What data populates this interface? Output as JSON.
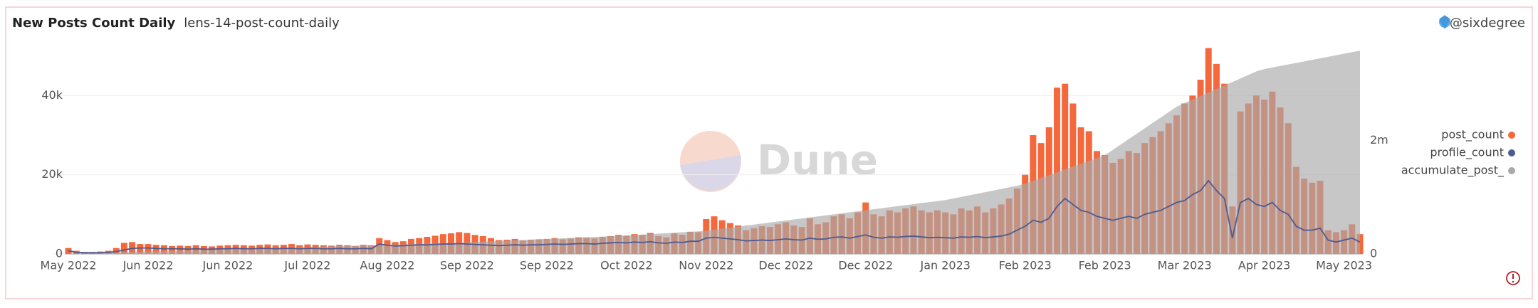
{
  "chart_data": {
    "type": "bar",
    "title": "New Posts Count Daily",
    "subtitle": "lens-14-post-count-daily",
    "author": "@sixdegree",
    "watermark": "Dune",
    "categories": [
      "May 2022",
      null,
      null,
      null,
      null,
      null,
      null,
      null,
      null,
      null,
      "Jun 2022",
      null,
      null,
      null,
      null,
      null,
      null,
      null,
      null,
      null,
      "Jun 2022",
      null,
      null,
      null,
      null,
      null,
      null,
      null,
      null,
      null,
      "Jul 2022",
      null,
      null,
      null,
      null,
      null,
      null,
      null,
      null,
      null,
      "Aug 2022",
      null,
      null,
      null,
      null,
      null,
      null,
      null,
      null,
      null,
      "Sep 2022",
      null,
      null,
      null,
      null,
      null,
      null,
      null,
      null,
      null,
      "Sep 2022",
      null,
      null,
      null,
      null,
      null,
      null,
      null,
      null,
      null,
      "Oct 2022",
      null,
      null,
      null,
      null,
      null,
      null,
      null,
      null,
      null,
      "Nov 2022",
      null,
      null,
      null,
      null,
      null,
      null,
      null,
      null,
      null,
      "Dec 2022",
      null,
      null,
      null,
      null,
      null,
      null,
      null,
      null,
      null,
      "Dec 2022",
      null,
      null,
      null,
      null,
      null,
      null,
      null,
      null,
      null,
      "Jan 2023",
      null,
      null,
      null,
      null,
      null,
      null,
      null,
      null,
      null,
      "Feb 2023",
      null,
      null,
      null,
      null,
      null,
      null,
      null,
      null,
      null,
      "Feb 2023",
      null,
      null,
      null,
      null,
      null,
      null,
      null,
      null,
      null,
      "Mar 2023",
      null,
      null,
      null,
      null,
      null,
      null,
      null,
      null,
      null,
      "Apr 2023",
      null,
      null,
      null,
      null,
      null,
      null,
      null,
      null,
      null,
      "May 2023",
      null,
      null
    ],
    "series": [
      {
        "name": "post_count",
        "color": "#f4683c",
        "type": "bar",
        "values": [
          1500,
          800,
          500,
          500,
          600,
          800,
          1500,
          2800,
          3000,
          2500,
          2500,
          2300,
          2200,
          2000,
          2100,
          2000,
          2200,
          2000,
          1900,
          2100,
          2200,
          2300,
          2200,
          2100,
          2300,
          2400,
          2200,
          2300,
          2500,
          2200,
          2400,
          2300,
          2200,
          2100,
          2300,
          2200,
          2000,
          2300,
          2200,
          4000,
          3500,
          3000,
          3200,
          3800,
          4000,
          4300,
          4600,
          5000,
          5200,
          5500,
          5300,
          4800,
          4500,
          4000,
          3500,
          3600,
          3800,
          3400,
          3600,
          3700,
          3800,
          4000,
          3700,
          3900,
          4200,
          4100,
          3900,
          4300,
          4500,
          4800,
          4600,
          5000,
          4800,
          5300,
          4500,
          4200,
          5200,
          4800,
          5600,
          5500,
          8800,
          9500,
          8500,
          7800,
          7200,
          6000,
          6500,
          7000,
          6800,
          7500,
          8000,
          7200,
          6800,
          9000,
          7500,
          8000,
          9500,
          10000,
          9000,
          10500,
          13000,
          10000,
          9500,
          11000,
          10500,
          11500,
          12000,
          11000,
          10500,
          11000,
          10500,
          10000,
          11500,
          11000,
          12000,
          10500,
          11500,
          12500,
          14000,
          16500,
          20000,
          30000,
          28000,
          32000,
          42000,
          43000,
          38000,
          32000,
          31000,
          26000,
          25000,
          23000,
          24000,
          26000,
          25500,
          28000,
          29500,
          31000,
          33000,
          35000,
          38000,
          40000,
          44000,
          52000,
          48000,
          43000,
          12000,
          36000,
          38000,
          40000,
          39000,
          41000,
          37000,
          33000,
          22000,
          19000,
          18000,
          18500,
          6000,
          5500,
          6000,
          7500,
          5000
        ]
      },
      {
        "name": "profile_count",
        "color": "#4e5a92",
        "type": "line",
        "values": [
          800,
          400,
          300,
          300,
          300,
          400,
          600,
          1000,
          1400,
          1500,
          1500,
          1400,
          1300,
          1300,
          1300,
          1200,
          1300,
          1200,
          1200,
          1300,
          1300,
          1400,
          1300,
          1300,
          1400,
          1400,
          1300,
          1400,
          1400,
          1300,
          1400,
          1400,
          1300,
          1300,
          1400,
          1300,
          1300,
          1400,
          1300,
          2500,
          2200,
          2000,
          2100,
          2200,
          2300,
          2300,
          2400,
          2500,
          2500,
          2600,
          2500,
          2400,
          2300,
          2200,
          2100,
          2200,
          2300,
          2200,
          2300,
          2300,
          2400,
          2500,
          2400,
          2500,
          2600,
          2600,
          2500,
          2700,
          2800,
          2900,
          2800,
          3000,
          2900,
          3100,
          2800,
          2700,
          3000,
          2900,
          3200,
          3200,
          4000,
          4200,
          4000,
          3800,
          3600,
          3300,
          3400,
          3500,
          3400,
          3600,
          3800,
          3600,
          3500,
          4000,
          3700,
          3800,
          4200,
          4300,
          4000,
          4400,
          4800,
          4200,
          4000,
          4300,
          4200,
          4400,
          4500,
          4300,
          4100,
          4200,
          4100,
          4000,
          4300,
          4200,
          4400,
          4100,
          4300,
          4500,
          5000,
          6000,
          7000,
          8500,
          8000,
          9000,
          12000,
          14000,
          12500,
          11000,
          10500,
          9500,
          9000,
          8500,
          9000,
          9500,
          9000,
          10000,
          10500,
          11000,
          12000,
          13000,
          13500,
          15000,
          16000,
          18500,
          16000,
          14000,
          4000,
          13000,
          14000,
          12500,
          12000,
          13000,
          11000,
          10000,
          7000,
          6000,
          6000,
          6500,
          3500,
          3000,
          3500,
          4000,
          3000
        ]
      },
      {
        "name": "accumulate_post_",
        "color": "#a9a9a9",
        "type": "area",
        "axis": "y2",
        "values": [
          2000,
          6000,
          10000,
          14000,
          18000,
          22000,
          26000,
          30000,
          34000,
          38000,
          42000,
          46000,
          50000,
          54000,
          58000,
          62000,
          66000,
          70000,
          74000,
          78000,
          82000,
          86000,
          90000,
          94000,
          98000,
          102000,
          106000,
          110000,
          114000,
          118000,
          122000,
          126000,
          130000,
          134000,
          138000,
          142000,
          146000,
          150000,
          154000,
          158000,
          162000,
          166000,
          170000,
          174000,
          178000,
          182000,
          186000,
          190000,
          194000,
          198000,
          204000,
          210000,
          216000,
          222000,
          228000,
          234000,
          240000,
          246000,
          252000,
          258000,
          264000,
          270000,
          276000,
          282000,
          288000,
          294000,
          300000,
          306000,
          312000,
          318000,
          326000,
          334000,
          342000,
          350000,
          358000,
          366000,
          374000,
          382000,
          390000,
          398000,
          410000,
          428000,
          446000,
          464000,
          482000,
          500000,
          518000,
          536000,
          554000,
          572000,
          590000,
          608000,
          626000,
          644000,
          662000,
          680000,
          698000,
          716000,
          734000,
          752000,
          770000,
          788000,
          806000,
          824000,
          842000,
          860000,
          878000,
          896000,
          914000,
          932000,
          950000,
          978000,
          1006000,
          1034000,
          1062000,
          1090000,
          1118000,
          1146000,
          1174000,
          1202000,
          1240000,
          1290000,
          1340000,
          1390000,
          1440000,
          1490000,
          1540000,
          1590000,
          1640000,
          1690000,
          1740000,
          1835000,
          1930000,
          2025000,
          2120000,
          2215000,
          2310000,
          2405000,
          2500000,
          2595000,
          2660000,
          2722000,
          2784000,
          2846000,
          2908000,
          2970000,
          3032000,
          3094000,
          3156000,
          3218000,
          3260000,
          3287000,
          3314000,
          3341000,
          3368000,
          3395000,
          3422000,
          3449000,
          3476000,
          3503000,
          3530000,
          3557000,
          3584000
        ]
      }
    ],
    "ylim": [
      0,
      53000
    ],
    "yticks": [
      0,
      {
        "value": 20000,
        "label": "20k"
      },
      {
        "value": 40000,
        "label": "40k"
      }
    ],
    "y2lim": [
      0,
      3700000
    ],
    "y2ticks": [
      0,
      {
        "value": 2000000,
        "label": "2m"
      }
    ],
    "grid": true,
    "legend": "right"
  }
}
